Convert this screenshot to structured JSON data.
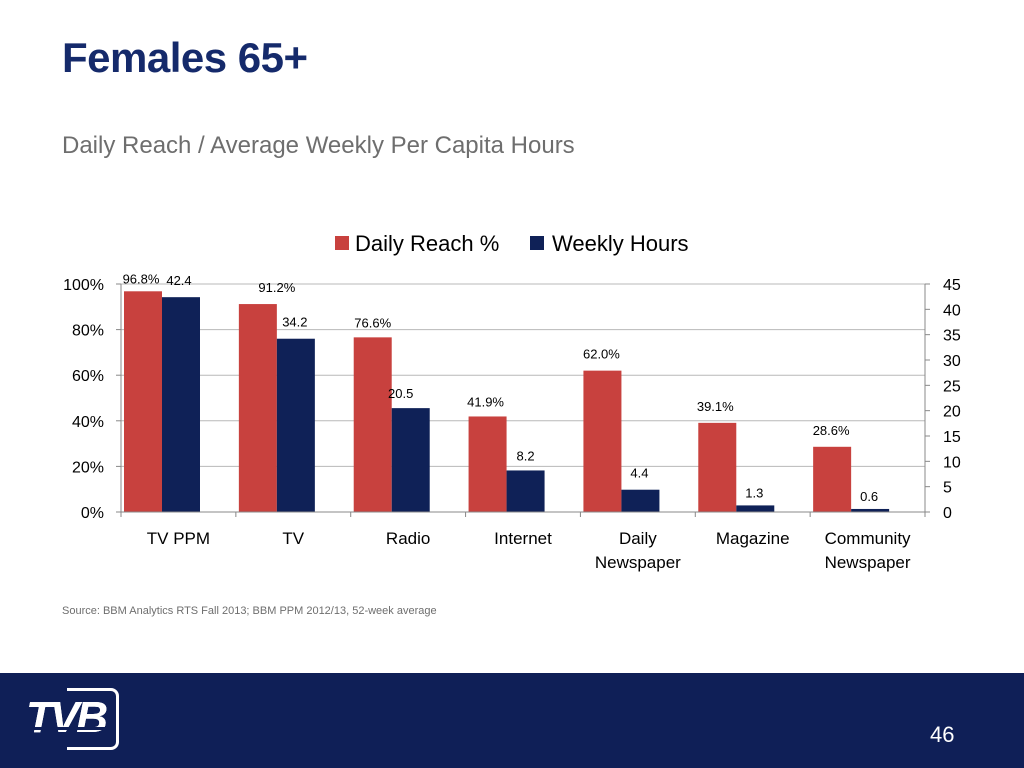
{
  "slide": {
    "title": "Females 65+",
    "subtitle": "Daily Reach / Average Weekly Per Capita Hours",
    "source": "Source: BBM Analytics RTS Fall 2013; BBM PPM 2012/13, 52-week average",
    "page_number": "46",
    "logo_text": "TVB",
    "colors": {
      "title": "#152a6b",
      "footer": "#0f1f57",
      "daily_reach": "#c8413e",
      "weekly_hours": "#0f2157"
    }
  },
  "chart_data": {
    "type": "bar",
    "categories": [
      [
        "TV PPM"
      ],
      [
        "TV"
      ],
      [
        "Radio"
      ],
      [
        "Internet"
      ],
      [
        "Daily",
        "Newspaper"
      ],
      [
        "Magazine"
      ],
      [
        "Community",
        "Newspaper"
      ]
    ],
    "series": [
      {
        "name": "Daily Reach %",
        "axis": "left",
        "color": "#c8413e",
        "values": [
          96.8,
          91.2,
          76.6,
          41.9,
          62.0,
          39.1,
          28.6
        ],
        "labels": [
          "96.8%",
          "91.2%",
          "76.6%",
          "41.9%",
          "62.0%",
          "39.1%",
          "28.6%"
        ]
      },
      {
        "name": "Weekly Hours",
        "axis": "right",
        "color": "#0f2157",
        "values": [
          42.4,
          34.2,
          20.5,
          8.2,
          4.4,
          1.3,
          0.6
        ],
        "labels": [
          "42.4",
          "34.2",
          "20.5",
          "8.2",
          "4.4",
          "1.3",
          "0.6"
        ]
      }
    ],
    "y_left": {
      "ylim": [
        0,
        100
      ],
      "ticks": [
        0,
        20,
        40,
        60,
        80,
        100
      ],
      "tick_labels": [
        "0%",
        "20%",
        "40%",
        "60%",
        "80%",
        "100%"
      ]
    },
    "y_right": {
      "ylim": [
        0,
        45
      ],
      "ticks": [
        0,
        5,
        10,
        15,
        20,
        25,
        30,
        35,
        40,
        45
      ],
      "tick_labels": [
        "0",
        "5",
        "10",
        "15",
        "20",
        "25",
        "30",
        "35",
        "40",
        "45"
      ]
    },
    "grid": true,
    "legend": "top-center"
  }
}
